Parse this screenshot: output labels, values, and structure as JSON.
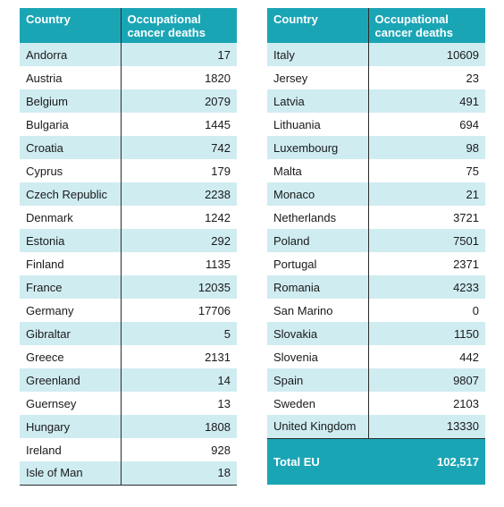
{
  "header": {
    "country": "Country",
    "deaths_line1": "Occupational",
    "deaths_line2": "cancer deaths"
  },
  "left_rows": [
    {
      "country": "Andorra",
      "deaths": "17"
    },
    {
      "country": "Austria",
      "deaths": "1820"
    },
    {
      "country": "Belgium",
      "deaths": "2079"
    },
    {
      "country": "Bulgaria",
      "deaths": "1445"
    },
    {
      "country": "Croatia",
      "deaths": "742"
    },
    {
      "country": "Cyprus",
      "deaths": "179"
    },
    {
      "country": "Czech Republic",
      "deaths": "2238"
    },
    {
      "country": "Denmark",
      "deaths": "1242"
    },
    {
      "country": "Estonia",
      "deaths": "292"
    },
    {
      "country": "Finland",
      "deaths": "1135"
    },
    {
      "country": "France",
      "deaths": "12035"
    },
    {
      "country": "Germany",
      "deaths": "17706"
    },
    {
      "country": "Gibraltar",
      "deaths": "5"
    },
    {
      "country": "Greece",
      "deaths": "2131"
    },
    {
      "country": "Greenland",
      "deaths": "14"
    },
    {
      "country": "Guernsey",
      "deaths": "13"
    },
    {
      "country": "Hungary",
      "deaths": "1808"
    },
    {
      "country": "Ireland",
      "deaths": "928"
    },
    {
      "country": "Isle of Man",
      "deaths": "18"
    }
  ],
  "right_rows": [
    {
      "country": "Italy",
      "deaths": "10609"
    },
    {
      "country": "Jersey",
      "deaths": "23"
    },
    {
      "country": "Latvia",
      "deaths": "491"
    },
    {
      "country": "Lithuania",
      "deaths": "694"
    },
    {
      "country": "Luxembourg",
      "deaths": "98"
    },
    {
      "country": "Malta",
      "deaths": "75"
    },
    {
      "country": "Monaco",
      "deaths": "21"
    },
    {
      "country": "Netherlands",
      "deaths": "3721"
    },
    {
      "country": "Poland",
      "deaths": "7501"
    },
    {
      "country": "Portugal",
      "deaths": "2371"
    },
    {
      "country": "Romania",
      "deaths": "4233"
    },
    {
      "country": "San Marino",
      "deaths": "0"
    },
    {
      "country": "Slovakia",
      "deaths": "1150"
    },
    {
      "country": "Slovenia",
      "deaths": "442"
    },
    {
      "country": "Spain",
      "deaths": "9807"
    },
    {
      "country": "Sweden",
      "deaths": "2103"
    },
    {
      "country": "United Kingdom",
      "deaths": "13330"
    }
  ],
  "total": {
    "label": "Total  EU",
    "value": "102,517"
  },
  "colors": {
    "header_teal": "#1aa5b5",
    "stripe_light_teal": "#cfecf1"
  }
}
